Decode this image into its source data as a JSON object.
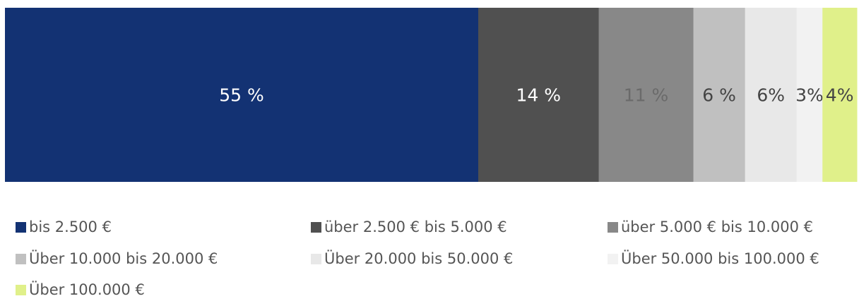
{
  "chart_data": {
    "type": "bar",
    "orientation": "horizontal",
    "stacked": true,
    "series": [
      {
        "name": "bis 2.500 €",
        "color": "#133273",
        "label_color": "#ffffff",
        "values": [
          55
        ],
        "value_labels": [
          "55 %"
        ]
      },
      {
        "name": "über 2.500 € bis 5.000 €",
        "color": "#505050",
        "label_color": "#ffffff",
        "values": [
          14
        ],
        "value_labels": [
          "14 %"
        ]
      },
      {
        "name": "über 5.000 € bis 10.000 €",
        "color": "#888888",
        "label_color": "#6a6a6a",
        "values": [
          11
        ],
        "value_labels": [
          "11 %"
        ]
      },
      {
        "name": "Über 10.000 bis 20.000 €",
        "color": "#c0c0c0",
        "label_color": "#444444",
        "values": [
          6
        ],
        "value_labels": [
          "6 %"
        ]
      },
      {
        "name": "Über 20.000 bis 50.000 €",
        "color": "#e8e8e8",
        "label_color": "#444444",
        "values": [
          6
        ],
        "value_labels": [
          "6%"
        ]
      },
      {
        "name": "Über 50.000 bis 100.000 €",
        "color": "#f2f2f2",
        "label_color": "#444444",
        "values": [
          3
        ],
        "value_labels": [
          "3%"
        ]
      },
      {
        "name": "Über 100.000 €",
        "color": "#e0f08a",
        "label_color": "#444444",
        "values": [
          4
        ],
        "value_labels": [
          "4%"
        ]
      }
    ]
  }
}
